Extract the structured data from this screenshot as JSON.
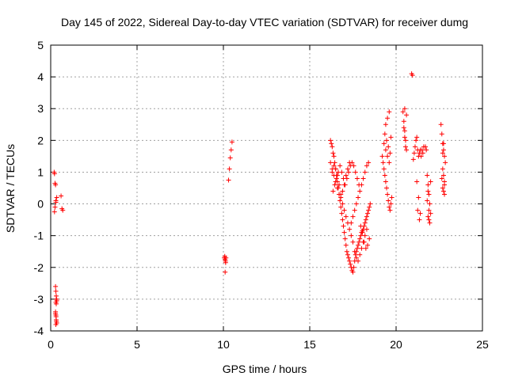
{
  "chart_data": {
    "type": "scatter",
    "title": "Day 145 of 2022, Sidereal Day-to-day VTEC variation (SDTVAR) for receiver dumg",
    "xlabel": "GPS time / hours",
    "ylabel": "SDTVAR / TECUs",
    "xlim": [
      0,
      25
    ],
    "ylim": [
      -4,
      5
    ],
    "xticks": [
      "0",
      "5",
      "10",
      "15",
      "20",
      "25"
    ],
    "yticks": [
      "-4",
      "-3",
      "-2",
      "-1",
      "0",
      "1",
      "2",
      "3",
      "4",
      "5"
    ],
    "grid": true,
    "legend": "none",
    "marker": "+",
    "color": "#ff0000",
    "series": [
      {
        "x": [
          0.2,
          0.22,
          0.25,
          0.28,
          0.3,
          0.22,
          0.25,
          0.3,
          0.35,
          0.6,
          0.65,
          0.7,
          0.28,
          0.3,
          0.32,
          0.33,
          0.35,
          0.3,
          0.32,
          0.34,
          0.28,
          0.3,
          0.31,
          0.33,
          0.35,
          0.3,
          0.32,
          0.28,
          10.05,
          10.08,
          10.1,
          10.12,
          10.13,
          10.15,
          10.1,
          10.3,
          10.35,
          10.4,
          10.45,
          10.5,
          16.2,
          16.25,
          16.3,
          16.35,
          16.4,
          16.45,
          16.5,
          16.55,
          16.6,
          16.65,
          16.7,
          16.75,
          16.8,
          16.85,
          16.9,
          16.95,
          17.0,
          17.05,
          17.1,
          17.15,
          17.2,
          17.25,
          17.3,
          17.35,
          17.4,
          17.45,
          17.5,
          17.55,
          17.6,
          17.65,
          17.7,
          17.75,
          17.8,
          17.85,
          17.9,
          17.95,
          18.0,
          18.05,
          18.1,
          18.15,
          18.2,
          18.25,
          18.3,
          18.35,
          18.4,
          18.45,
          18.5,
          16.3,
          16.4,
          16.5,
          16.6,
          16.7,
          16.8,
          16.9,
          17.0,
          17.1,
          17.2,
          17.3,
          17.4,
          17.5,
          17.6,
          17.7,
          17.8,
          17.9,
          18.0,
          18.1,
          18.2,
          18.3,
          18.4,
          16.35,
          16.45,
          16.55,
          16.65,
          16.75,
          16.85,
          16.95,
          17.05,
          17.15,
          17.25,
          17.35,
          17.45,
          17.55,
          17.65,
          17.75,
          17.85,
          17.95,
          18.05,
          18.15,
          18.25,
          18.35,
          18.45,
          16.2,
          16.3,
          16.4,
          16.5,
          16.6,
          16.7,
          16.8,
          16.9,
          17.0,
          17.1,
          17.2,
          17.3,
          17.4,
          17.5,
          17.6,
          17.7,
          17.8,
          17.9,
          18.0,
          18.1,
          18.2,
          18.3,
          19.2,
          19.25,
          19.3,
          19.35,
          19.4,
          19.45,
          19.5,
          19.55,
          19.6,
          19.65,
          19.7,
          19.75,
          19.3,
          19.4,
          19.5,
          19.6,
          19.7,
          19.35,
          19.45,
          19.55,
          19.65,
          19.4,
          19.5,
          19.6,
          20.4,
          20.45,
          20.5,
          20.55,
          20.6,
          20.45,
          20.5,
          20.55,
          20.5,
          20.6,
          20.9,
          20.95,
          21.0,
          21.05,
          21.1,
          21.15,
          21.2,
          21.25,
          21.3,
          21.35,
          21.4,
          21.45,
          21.5,
          21.55,
          21.6,
          21.2,
          21.3,
          21.4,
          21.25,
          21.35,
          21.7,
          21.75,
          21.8,
          21.85,
          21.9,
          21.95,
          22.0,
          21.85,
          21.9,
          21.95,
          21.8,
          21.9,
          22.0,
          21.85,
          22.6,
          22.65,
          22.7,
          22.75,
          22.8,
          22.85,
          22.7,
          22.75,
          22.8,
          22.7,
          22.75,
          22.8,
          22.65,
          22.7,
          22.75,
          22.8
        ],
        "y": [
          1.0,
          0.95,
          0.65,
          0.6,
          0.05,
          -0.25,
          -0.1,
          0.1,
          0.2,
          0.25,
          -0.15,
          -0.2,
          -2.6,
          -2.75,
          -2.9,
          -3.0,
          -3.05,
          -3.1,
          -3.15,
          -3.0,
          -3.4,
          -3.5,
          -3.55,
          -3.7,
          -3.75,
          -3.8,
          -3.65,
          -3.45,
          -1.7,
          -1.65,
          -1.75,
          -1.8,
          -1.85,
          -1.7,
          -2.15,
          0.75,
          1.1,
          1.45,
          1.7,
          1.95,
          2.0,
          1.9,
          1.8,
          1.6,
          1.5,
          1.3,
          1.1,
          0.9,
          0.7,
          0.5,
          0.3,
          0.1,
          -0.1,
          -0.3,
          -0.5,
          -0.7,
          -0.9,
          -1.1,
          -1.3,
          -1.5,
          -1.6,
          -1.7,
          -1.8,
          -1.9,
          -2.0,
          -2.1,
          -2.15,
          -2.0,
          -1.8,
          -1.6,
          -1.5,
          -1.4,
          -1.3,
          -1.2,
          -1.1,
          -1.0,
          -0.9,
          -0.85,
          -0.8,
          -0.7,
          -0.6,
          -0.5,
          -0.4,
          -0.3,
          -0.2,
          -0.1,
          0.0,
          1.0,
          1.2,
          1.1,
          0.9,
          0.6,
          0.3,
          0.0,
          -0.2,
          -0.4,
          -0.6,
          -0.8,
          -0.6,
          -0.4,
          -0.2,
          0.0,
          0.2,
          0.4,
          0.6,
          0.8,
          1.0,
          1.2,
          1.3,
          0.4,
          0.6,
          0.8,
          1.0,
          1.2,
          1.0,
          0.8,
          0.6,
          0.8,
          1.0,
          1.2,
          1.3,
          1.2,
          1.0,
          0.8,
          0.6,
          -0.7,
          -0.9,
          -1.2,
          -1.4,
          -1.3,
          -1.1,
          1.3,
          1.1,
          0.9,
          0.7,
          0.5,
          0.3,
          0.2,
          0.4,
          0.6,
          0.9,
          1.1,
          1.3,
          -1.0,
          -1.2,
          -1.5,
          -1.7,
          -1.8,
          -1.6,
          -1.4,
          -1.2,
          -1.0,
          -0.8,
          1.5,
          1.3,
          1.1,
          0.9,
          0.7,
          0.5,
          0.3,
          0.1,
          -0.1,
          -0.2,
          0.0,
          0.2,
          1.9,
          1.7,
          1.5,
          1.3,
          2.1,
          2.2,
          2.0,
          1.8,
          1.6,
          2.5,
          2.7,
          2.9,
          2.9,
          2.6,
          2.3,
          2.0,
          1.7,
          2.4,
          2.1,
          1.8,
          3.0,
          2.8,
          4.1,
          4.05,
          1.4,
          1.6,
          1.8,
          2.0,
          2.1,
          1.7,
          1.5,
          1.6,
          1.7,
          1.5,
          1.7,
          1.6,
          1.8,
          0.7,
          0.2,
          -0.3,
          -0.2,
          -0.5,
          1.8,
          1.7,
          0.9,
          0.6,
          0.3,
          0.0,
          -0.3,
          -0.4,
          -0.5,
          -0.6,
          0.1,
          -0.2,
          0.7,
          0.4,
          2.5,
          2.2,
          1.9,
          1.7,
          1.5,
          1.3,
          1.1,
          0.9,
          0.7,
          0.5,
          0.4,
          0.6,
          0.8,
          1.6,
          1.9,
          0.3
        ]
      }
    ]
  }
}
